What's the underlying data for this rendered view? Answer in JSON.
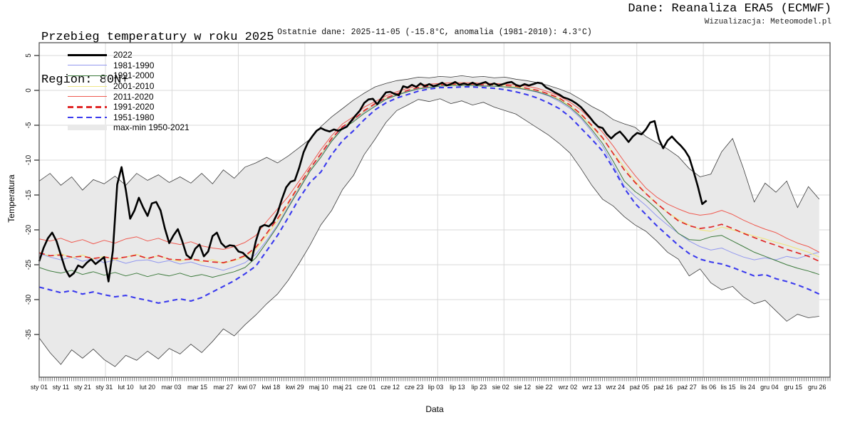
{
  "header": {
    "title_line1": "Przebieg temperatury w roku 2025",
    "title_line2": "Region: 80N+",
    "source": "Dane: Reanaliza ERA5 (ECMWF)",
    "visualization": "Wizualizacja: Meteomodel.pl",
    "subtitle": "Ostatnie dane: 2025-11-05 (-15.8°C, anomalia (1981-2010): 4.3°C)"
  },
  "legend": {
    "items": [
      {
        "label": "2022",
        "kind": "thick",
        "color": "#000000"
      },
      {
        "label": "1981-1990",
        "kind": "line",
        "color": "#9298ef"
      },
      {
        "label": "1991-2000",
        "kind": "line",
        "color": "#3c7a3c"
      },
      {
        "label": "2001-2010",
        "kind": "line",
        "color": "#efe687"
      },
      {
        "label": "2011-2020",
        "kind": "line",
        "color": "#ef5a50"
      },
      {
        "label": "1991-2020",
        "kind": "dash",
        "color": "#e02828"
      },
      {
        "label": "1951-1980",
        "kind": "dash",
        "color": "#3a3aee"
      },
      {
        "label": "max-min 1950-2021",
        "kind": "band",
        "color": "#e9e9e9"
      }
    ]
  },
  "chart_data": {
    "type": "line",
    "title": "Przebieg temperatury w roku 2025 — Region 80N+",
    "xlabel": "Data",
    "ylabel": "Temperatura",
    "x_domain_days": [
      1,
      366
    ],
    "ylim": [
      -41,
      6.8
    ],
    "grid": true,
    "yticks": [
      5,
      0,
      -5,
      -10,
      -15,
      -20,
      -25,
      -30,
      -35
    ],
    "grid_days": [
      31.6,
      62.3,
      92.9,
      123.6,
      154.2,
      184.9,
      215.5,
      246.2,
      276.8,
      307.5,
      338.1
    ],
    "xticks": [
      {
        "label": "sty 01",
        "day": 1
      },
      {
        "label": "sty 11",
        "day": 11
      },
      {
        "label": "sty 21",
        "day": 21
      },
      {
        "label": "sty 31",
        "day": 31
      },
      {
        "label": "lut 10",
        "day": 41
      },
      {
        "label": "lut 20",
        "day": 51
      },
      {
        "label": "mar 03",
        "day": 62
      },
      {
        "label": "mar 15",
        "day": 74
      },
      {
        "label": "mar 27",
        "day": 86
      },
      {
        "label": "kwi 07",
        "day": 97
      },
      {
        "label": "kwi 18",
        "day": 108
      },
      {
        "label": "kwi 29",
        "day": 119
      },
      {
        "label": "maj 10",
        "day": 130
      },
      {
        "label": "maj 21",
        "day": 141
      },
      {
        "label": "cze 01",
        "day": 152
      },
      {
        "label": "cze 12",
        "day": 163
      },
      {
        "label": "cze 23",
        "day": 174
      },
      {
        "label": "lip 03",
        "day": 184
      },
      {
        "label": "lip 13",
        "day": 194
      },
      {
        "label": "lip 23",
        "day": 204
      },
      {
        "label": "sie 02",
        "day": 214
      },
      {
        "label": "sie 12",
        "day": 224
      },
      {
        "label": "sie 22",
        "day": 234
      },
      {
        "label": "wrz 02",
        "day": 245
      },
      {
        "label": "wrz 13",
        "day": 256
      },
      {
        "label": "wrz 24",
        "day": 267
      },
      {
        "label": "paź 05",
        "day": 278
      },
      {
        "label": "paź 16",
        "day": 289
      },
      {
        "label": "paź 27",
        "day": 300
      },
      {
        "label": "lis 06",
        "day": 310
      },
      {
        "label": "lis 15",
        "day": 319
      },
      {
        "label": "lis 24",
        "day": 328
      },
      {
        "label": "gru 04",
        "day": 338
      },
      {
        "label": "gru 15",
        "day": 349
      },
      {
        "label": "gru 26",
        "day": 360
      }
    ],
    "band": {
      "name": "max-min 1950-2021",
      "fill": "#e9e9e9",
      "edge_color": "#3c3c3c",
      "day_start": 1,
      "day_step": 5,
      "max": [
        -13.0,
        -11.9,
        -13.6,
        -12.4,
        -14.3,
        -12.8,
        -13.4,
        -12.3,
        -13.6,
        -11.9,
        -12.9,
        -12.1,
        -13.2,
        -12.4,
        -13.3,
        -11.9,
        -13.4,
        -11.4,
        -12.6,
        -11.0,
        -10.4,
        -9.6,
        -10.4,
        -9.4,
        -8.2,
        -7.0,
        -5.2,
        -3.8,
        -2.6,
        -1.4,
        -0.4,
        0.5,
        1.0,
        1.4,
        1.6,
        1.9,
        1.8,
        2.0,
        1.9,
        2.1,
        1.9,
        2.0,
        1.8,
        1.9,
        1.6,
        1.4,
        1.1,
        0.7,
        0.2,
        -0.4,
        -1.3,
        -2.3,
        -3.1,
        -4.2,
        -4.8,
        -5.3,
        -6.6,
        -7.5,
        -8.4,
        -9.5,
        -11.2,
        -12.4,
        -12.0,
        -8.8,
        -6.9,
        -11.2,
        -16.0,
        -13.3,
        -14.6,
        -13.0,
        -16.8,
        -13.8,
        -15.6
      ],
      "min": [
        -35.5,
        -37.6,
        -39.3,
        -37.2,
        -38.4,
        -37.1,
        -38.6,
        -39.6,
        -38.0,
        -38.7,
        -37.4,
        -38.5,
        -37.0,
        -37.8,
        -36.4,
        -37.6,
        -36.0,
        -34.2,
        -35.2,
        -33.6,
        -32.2,
        -30.6,
        -29.2,
        -27.2,
        -24.8,
        -22.2,
        -19.3,
        -17.2,
        -14.2,
        -12.2,
        -9.2,
        -7.0,
        -4.6,
        -2.9,
        -2.1,
        -1.3,
        -1.6,
        -1.2,
        -1.9,
        -1.5,
        -2.1,
        -1.7,
        -2.4,
        -2.9,
        -3.4,
        -4.4,
        -5.4,
        -6.4,
        -7.6,
        -9.0,
        -11.2,
        -13.6,
        -15.6,
        -16.6,
        -18.1,
        -19.3,
        -20.2,
        -21.6,
        -23.2,
        -24.2,
        -26.6,
        -25.6,
        -27.6,
        -28.6,
        -28.1,
        -29.6,
        -30.6,
        -30.1,
        -31.6,
        -33.1,
        -32.1,
        -32.6,
        -32.4
      ]
    },
    "series": [
      {
        "name": "1981-1990",
        "color": "#9298ef",
        "width": 1.0,
        "dash": null,
        "day_start": 1,
        "day_step": 5,
        "values": [
          -23.4,
          -23.9,
          -24.3,
          -23.9,
          -24.5,
          -24.1,
          -24.7,
          -24.3,
          -24.8,
          -24.4,
          -24.3,
          -24.7,
          -24.4,
          -24.9,
          -24.6,
          -25.1,
          -25.4,
          -25.8,
          -25.3,
          -24.7,
          -23.5,
          -21.5,
          -19.3,
          -16.6,
          -14.0,
          -11.4,
          -9.3,
          -7.2,
          -5.4,
          -4.3,
          -3.1,
          -2.1,
          -1.2,
          -0.6,
          -0.1,
          0.3,
          0.5,
          0.6,
          0.7,
          0.7,
          0.7,
          0.7,
          0.6,
          0.5,
          0.3,
          0.1,
          -0.3,
          -0.8,
          -1.6,
          -2.6,
          -4.0,
          -5.9,
          -8.0,
          -10.8,
          -13.7,
          -15.2,
          -16.5,
          -18.0,
          -19.3,
          -20.5,
          -21.6,
          -22.4,
          -22.9,
          -22.6,
          -23.3,
          -23.9,
          -24.3,
          -24.0,
          -24.3,
          -23.8,
          -24.1,
          -23.6,
          -23.2
        ]
      },
      {
        "name": "1991-2000",
        "color": "#3c7a3c",
        "width": 1.0,
        "dash": null,
        "day_start": 1,
        "day_step": 5,
        "values": [
          -25.4,
          -25.9,
          -26.2,
          -25.8,
          -26.4,
          -26.0,
          -26.5,
          -26.1,
          -26.6,
          -26.2,
          -26.7,
          -26.3,
          -26.6,
          -26.2,
          -26.7,
          -26.4,
          -26.8,
          -26.4,
          -26.0,
          -25.4,
          -24.0,
          -21.8,
          -19.5,
          -16.8,
          -14.2,
          -11.6,
          -9.6,
          -7.3,
          -5.5,
          -4.5,
          -3.3,
          -2.3,
          -1.3,
          -0.7,
          -0.2,
          0.2,
          0.4,
          0.6,
          0.7,
          0.7,
          0.7,
          0.6,
          0.6,
          0.5,
          0.4,
          0.1,
          -0.2,
          -0.7,
          -1.4,
          -2.4,
          -3.8,
          -5.6,
          -7.6,
          -10.2,
          -13.0,
          -14.5,
          -15.6,
          -17.0,
          -18.8,
          -20.5,
          -21.4,
          -21.5,
          -21.0,
          -20.8,
          -21.6,
          -22.4,
          -23.2,
          -23.8,
          -24.4,
          -25.0,
          -25.5,
          -25.9,
          -26.4
        ]
      },
      {
        "name": "2001-2010",
        "color": "#efe687",
        "width": 1.2,
        "dash": null,
        "day_start": 1,
        "day_step": 5,
        "values": [
          -23.2,
          -23.8,
          -23.4,
          -24.0,
          -23.6,
          -24.2,
          -23.8,
          -24.3,
          -23.9,
          -23.5,
          -24.1,
          -23.7,
          -24.2,
          -24.5,
          -24.1,
          -24.6,
          -24.3,
          -24.8,
          -24.4,
          -23.9,
          -22.8,
          -20.8,
          -18.8,
          -16.3,
          -13.8,
          -11.3,
          -9.2,
          -7.0,
          -5.2,
          -4.2,
          -3.0,
          -2.0,
          -1.1,
          -0.5,
          0.0,
          0.4,
          0.6,
          0.8,
          0.8,
          0.9,
          0.9,
          0.8,
          0.8,
          0.7,
          0.5,
          0.3,
          0.0,
          -0.5,
          -1.2,
          -2.2,
          -3.5,
          -5.2,
          -6.9,
          -9.0,
          -11.0,
          -13.0,
          -14.8,
          -16.3,
          -17.5,
          -18.5,
          -19.3,
          -20.0,
          -20.2,
          -19.6,
          -20.0,
          -20.4,
          -20.9,
          -21.3,
          -21.8,
          -22.2,
          -22.7,
          -23.2,
          -23.9
        ]
      },
      {
        "name": "2011-2020",
        "color": "#ef5a50",
        "width": 1.0,
        "dash": null,
        "day_start": 1,
        "day_step": 5,
        "values": [
          -21.3,
          -21.6,
          -21.2,
          -21.8,
          -21.4,
          -22.0,
          -21.5,
          -21.9,
          -21.3,
          -21.0,
          -21.6,
          -21.2,
          -21.8,
          -22.1,
          -21.7,
          -22.3,
          -22.6,
          -22.8,
          -22.4,
          -21.8,
          -20.8,
          -18.8,
          -17.0,
          -15.2,
          -13.0,
          -10.8,
          -8.5,
          -6.5,
          -4.8,
          -3.8,
          -2.4,
          -1.6,
          -0.8,
          -0.2,
          0.3,
          0.7,
          0.9,
          1.0,
          1.1,
          1.1,
          1.1,
          1.0,
          1.0,
          0.9,
          0.8,
          0.6,
          0.3,
          -0.2,
          -0.8,
          -1.7,
          -2.8,
          -4.3,
          -6.0,
          -8.0,
          -10.2,
          -12.2,
          -14.0,
          -15.3,
          -16.3,
          -17.0,
          -17.6,
          -17.9,
          -17.7,
          -17.2,
          -17.8,
          -18.6,
          -19.3,
          -19.9,
          -20.4,
          -21.2,
          -21.9,
          -22.4,
          -23.2
        ]
      },
      {
        "name": "1991-2020",
        "color": "#e02828",
        "width": 1.7,
        "dash": "8 5",
        "day_start": 1,
        "day_step": 5,
        "values": [
          -23.3,
          -23.7,
          -23.6,
          -23.9,
          -23.8,
          -24.1,
          -23.9,
          -24.1,
          -23.9,
          -23.6,
          -24.1,
          -23.7,
          -24.2,
          -24.3,
          -24.2,
          -24.4,
          -24.6,
          -24.7,
          -24.3,
          -23.7,
          -22.5,
          -20.5,
          -18.4,
          -16.1,
          -13.6,
          -11.2,
          -9.1,
          -6.9,
          -5.2,
          -4.2,
          -2.9,
          -1.9,
          -1.1,
          -0.5,
          0.0,
          0.4,
          0.6,
          0.8,
          0.9,
          0.9,
          0.9,
          0.8,
          0.8,
          0.7,
          0.6,
          0.3,
          0.0,
          -0.5,
          -1.1,
          -2.1,
          -3.4,
          -5.0,
          -6.8,
          -9.1,
          -11.4,
          -13.2,
          -14.8,
          -16.2,
          -17.5,
          -18.7,
          -19.4,
          -19.8,
          -19.6,
          -19.2,
          -19.8,
          -20.5,
          -21.1,
          -21.7,
          -22.2,
          -22.8,
          -23.3,
          -23.8,
          -24.5
        ]
      },
      {
        "name": "1951-1980",
        "color": "#3a3aee",
        "width": 2.1,
        "dash": "7 5",
        "day_start": 1,
        "day_step": 5,
        "values": [
          -28.2,
          -28.6,
          -29.0,
          -28.7,
          -29.2,
          -28.9,
          -29.3,
          -29.6,
          -29.4,
          -29.8,
          -30.1,
          -30.5,
          -30.2,
          -29.9,
          -30.2,
          -29.7,
          -28.9,
          -28.1,
          -27.3,
          -26.3,
          -25.2,
          -23.0,
          -20.8,
          -18.2,
          -15.5,
          -13.2,
          -11.7,
          -9.2,
          -7.2,
          -5.8,
          -4.2,
          -2.8,
          -1.8,
          -1.1,
          -0.6,
          -0.1,
          0.2,
          0.4,
          0.4,
          0.5,
          0.5,
          0.4,
          0.3,
          0.1,
          -0.2,
          -0.6,
          -1.1,
          -1.8,
          -2.6,
          -3.8,
          -5.4,
          -7.0,
          -8.7,
          -11.2,
          -14.0,
          -16.2,
          -17.8,
          -19.4,
          -20.8,
          -22.2,
          -23.4,
          -24.2,
          -24.6,
          -24.9,
          -25.4,
          -26.0,
          -26.6,
          -26.4,
          -27.0,
          -27.4,
          -27.9,
          -28.5,
          -29.2
        ]
      },
      {
        "name": "2022",
        "color": "#000000",
        "width": 2.6,
        "dash": null,
        "day_start": 1,
        "day_step": 2,
        "values": [
          -24.5,
          -22.6,
          -21.2,
          -20.4,
          -21.6,
          -23.6,
          -25.6,
          -26.7,
          -26.2,
          -25.1,
          -25.4,
          -24.7,
          -24.2,
          -24.9,
          -24.4,
          -23.9,
          -27.4,
          -23.0,
          -13.5,
          -11.0,
          -14.3,
          -18.4,
          -17.2,
          -15.4,
          -16.8,
          -18.0,
          -16.2,
          -16.0,
          -17.2,
          -19.8,
          -21.9,
          -20.8,
          -19.9,
          -21.6,
          -23.6,
          -24.1,
          -22.7,
          -22.1,
          -23.8,
          -23.1,
          -20.9,
          -20.4,
          -21.9,
          -22.5,
          -22.2,
          -22.3,
          -23.1,
          -23.3,
          -23.9,
          -24.4,
          -21.6,
          -19.6,
          -19.3,
          -19.5,
          -18.9,
          -17.6,
          -15.6,
          -13.9,
          -13.1,
          -12.9,
          -11.1,
          -8.9,
          -7.5,
          -6.6,
          -5.8,
          -5.4,
          -5.7,
          -5.9,
          -5.6,
          -5.8,
          -5.5,
          -5.2,
          -4.4,
          -3.6,
          -2.9,
          -1.8,
          -1.3,
          -1.2,
          -2.0,
          -1.1,
          -0.3,
          -0.2,
          -0.5,
          -0.7,
          0.6,
          0.4,
          0.8,
          0.5,
          1.0,
          0.6,
          0.9,
          0.6,
          0.8,
          1.1,
          0.7,
          0.9,
          1.2,
          0.8,
          1.0,
          0.8,
          1.1,
          0.8,
          1.0,
          1.2,
          0.8,
          1.0,
          0.7,
          0.9,
          1.1,
          1.2,
          0.8,
          0.6,
          0.9,
          0.7,
          0.9,
          1.1,
          1.0,
          0.4,
          0.1,
          -0.3,
          -0.6,
          -1.0,
          -1.2,
          -1.5,
          -1.9,
          -2.4,
          -3.1,
          -3.8,
          -4.6,
          -5.2,
          -5.4,
          -6.3,
          -6.9,
          -6.3,
          -5.9,
          -6.6,
          -7.4,
          -6.6,
          -6.1,
          -6.3,
          -5.6,
          -4.6,
          -4.4,
          -7.0,
          -8.3,
          -7.2,
          -6.6,
          -7.3,
          -7.9,
          -8.6,
          -9.6,
          -11.6,
          -13.8,
          -16.3,
          -15.8
        ]
      }
    ]
  }
}
